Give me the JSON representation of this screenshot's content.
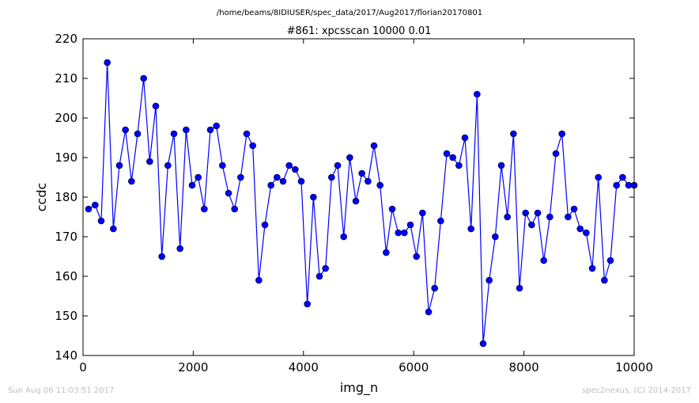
{
  "header": {
    "file_path": "/home/beams/8IDIUSER/spec_data/2017/Aug2017/florian20170801"
  },
  "footer": {
    "timestamp": "Sun Aug 06 11:03:51 2017",
    "credit": "spec2nexus, (C) 2014-2017"
  },
  "chart_data": {
    "type": "line",
    "title": "#861: xpcsscan 10000 0.01",
    "xlabel": "img_n",
    "ylabel": "ccdc",
    "xlim": [
      0,
      10000
    ],
    "ylim": [
      140,
      220
    ],
    "x_ticks": [
      0,
      2000,
      4000,
      6000,
      8000,
      10000
    ],
    "y_ticks": [
      140,
      150,
      160,
      170,
      180,
      190,
      200,
      210,
      220
    ],
    "grid": false,
    "legend": "none",
    "line_color": "#0000ff",
    "marker": "circle",
    "series": [
      {
        "x": [
          100,
          220,
          330,
          440,
          550,
          660,
          770,
          880,
          990,
          1100,
          1210,
          1320,
          1430,
          1540,
          1650,
          1760,
          1870,
          1980,
          2090,
          2200,
          2310,
          2420,
          2530,
          2640,
          2750,
          2860,
          2970,
          3080,
          3190,
          3300,
          3410,
          3520,
          3630,
          3740,
          3850,
          3960,
          4070,
          4180,
          4290,
          4400,
          4510,
          4620,
          4730,
          4840,
          4950,
          5060,
          5170,
          5280,
          5390,
          5500,
          5610,
          5720,
          5830,
          5940,
          6050,
          6160,
          6270,
          6380,
          6490,
          6600,
          6710,
          6820,
          6930,
          7040,
          7150,
          7260,
          7370,
          7480,
          7590,
          7700,
          7810,
          7920,
          8030,
          8140,
          8250,
          8360,
          8470,
          8580,
          8690,
          8800,
          8910,
          9020,
          9130,
          9240,
          9350,
          9460,
          9570,
          9680,
          9790,
          9900,
          10000
        ],
        "values": [
          177,
          178,
          174,
          214,
          172,
          188,
          197,
          184,
          196,
          210,
          189,
          203,
          165,
          188,
          196,
          167,
          197,
          183,
          185,
          177,
          197,
          198,
          188,
          181,
          177,
          185,
          196,
          193,
          159,
          173,
          183,
          185,
          184,
          188,
          187,
          184,
          153,
          180,
          160,
          162,
          185,
          188,
          170,
          190,
          179,
          186,
          184,
          193,
          183,
          166,
          177,
          171,
          171,
          173,
          165,
          176,
          151,
          157,
          174,
          191,
          190,
          188,
          195,
          172,
          206,
          143,
          159,
          170,
          188,
          175,
          196,
          157,
          176,
          173,
          176,
          164,
          175,
          191,
          196,
          175,
          177,
          172,
          171,
          162,
          185,
          159,
          164,
          183,
          185,
          183,
          183
        ]
      }
    ]
  }
}
